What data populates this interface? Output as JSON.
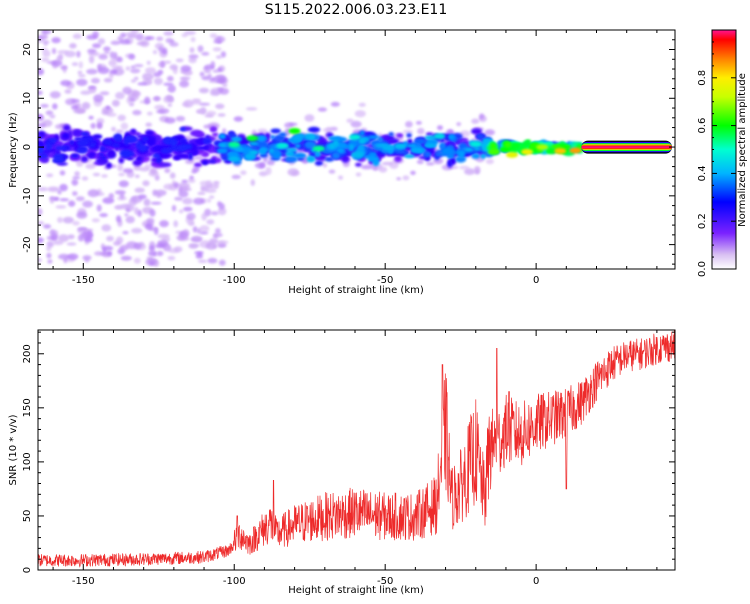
{
  "title": "S115.2022.006.03.23.E11",
  "colors": {
    "snr_line": "#ee2a2a",
    "axes": "#000000"
  },
  "chart_data": [
    {
      "type": "heatmap",
      "name": "spectrogram",
      "xlabel": "Height of straight line (km)",
      "ylabel": "Frequency (Hz)",
      "xlim": [
        -165,
        46
      ],
      "ylim": [
        -25,
        24
      ],
      "xticks": [
        -150,
        -100,
        -50,
        0
      ],
      "yticks": [
        -20,
        -10,
        0,
        10,
        20
      ],
      "grid": false,
      "colorbar": {
        "label": "Normalized spectral amplitude",
        "range": [
          0.0,
          1.0
        ],
        "ticks": [
          0.0,
          0.2,
          0.4,
          0.6,
          0.8
        ],
        "tick_labels": [
          "0.0",
          "0.2",
          "0.4",
          "0.6",
          "0.8"
        ],
        "colormap": "rainbow (violet to red)"
      },
      "description_regions": [
        {
          "x_range": [
            -165,
            -105
          ],
          "freq_spread": 24,
          "amplitude": 0.1
        },
        {
          "x_range": [
            -105,
            -15
          ],
          "freq_spread": 8,
          "amplitude": 0.35
        },
        {
          "x_range": [
            -15,
            15
          ],
          "freq_spread": 2,
          "amplitude": 0.7
        },
        {
          "x_range": [
            15,
            45
          ],
          "freq_spread": 0.6,
          "amplitude": 0.95
        }
      ]
    },
    {
      "type": "line",
      "name": "snr",
      "xlabel": "Height of straight line (km)",
      "ylabel": "SNR (10 * v/v)",
      "xlim": [
        -165,
        46
      ],
      "ylim": [
        0,
        222
      ],
      "xticks": [
        -150,
        -100,
        -50,
        0
      ],
      "yticks": [
        0,
        50,
        100,
        150,
        200
      ],
      "grid": false,
      "x": [
        -165,
        -150,
        -130,
        -110,
        -102,
        -98,
        -95,
        -92,
        -88,
        -86,
        -80,
        -70,
        -60,
        -50,
        -40,
        -33,
        -30,
        -28,
        -25,
        -20,
        -17,
        -15,
        -12,
        -10,
        -5,
        0,
        5,
        10,
        15,
        20,
        25,
        30,
        35,
        40,
        46
      ],
      "y": [
        9,
        9,
        10,
        12,
        18,
        30,
        22,
        30,
        40,
        30,
        38,
        45,
        48,
        45,
        45,
        55,
        120,
        60,
        70,
        100,
        60,
        115,
        120,
        130,
        125,
        135,
        140,
        145,
        155,
        175,
        190,
        198,
        200,
        205,
        208
      ],
      "spikes": [
        {
          "x": -99,
          "y": 50
        },
        {
          "x": -87,
          "y": 83
        },
        {
          "x": -31,
          "y": 190
        },
        {
          "x": -13,
          "y": 205
        },
        {
          "x": -9,
          "y": 165
        },
        {
          "x": 10,
          "y": 75
        }
      ]
    }
  ]
}
